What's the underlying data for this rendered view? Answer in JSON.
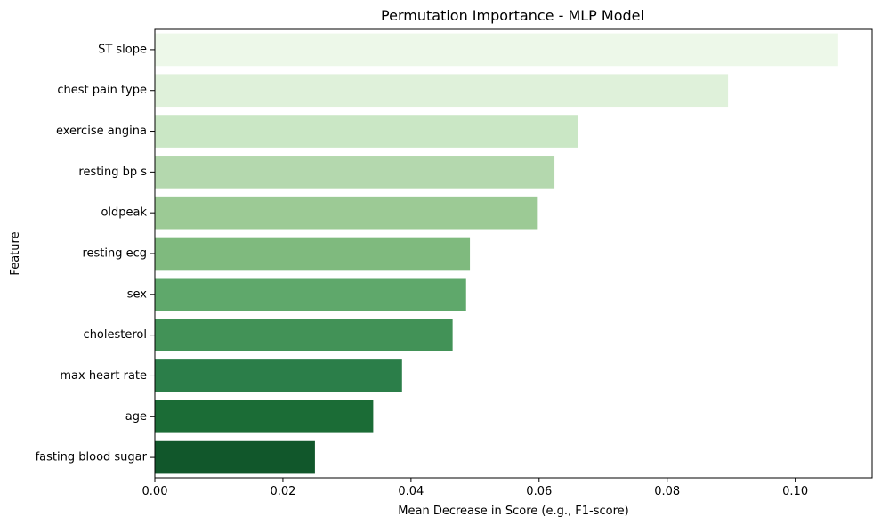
{
  "chart_data": {
    "type": "bar",
    "orientation": "horizontal",
    "title": "Permutation Importance - MLP Model",
    "xlabel": "Mean Decrease in Score (e.g., F1-score)",
    "ylabel": "Feature",
    "xlim": [
      0.0,
      0.112
    ],
    "xticks": [
      0.0,
      0.02,
      0.04,
      0.06,
      0.08,
      0.1
    ],
    "xtick_labels": [
      "0.00",
      "0.02",
      "0.04",
      "0.06",
      "0.08",
      "0.10"
    ],
    "grid": false,
    "legend": "none",
    "categories": [
      "ST slope",
      "chest pain type",
      "exercise angina",
      "resting bp s",
      "oldpeak",
      "resting ecg",
      "sex",
      "cholesterol",
      "max heart rate",
      "age",
      "fasting blood sugar"
    ],
    "values": [
      0.1067,
      0.0895,
      0.0661,
      0.0624,
      0.0598,
      0.0492,
      0.0486,
      0.0465,
      0.0386,
      0.0341,
      0.025
    ],
    "colors": [
      "#edf8e9",
      "#dff1da",
      "#cae7c5",
      "#b4d8ae",
      "#9cca95",
      "#7fba7e",
      "#5fa86b",
      "#429257",
      "#2b7e49",
      "#1b6c36",
      "#11572b"
    ]
  }
}
